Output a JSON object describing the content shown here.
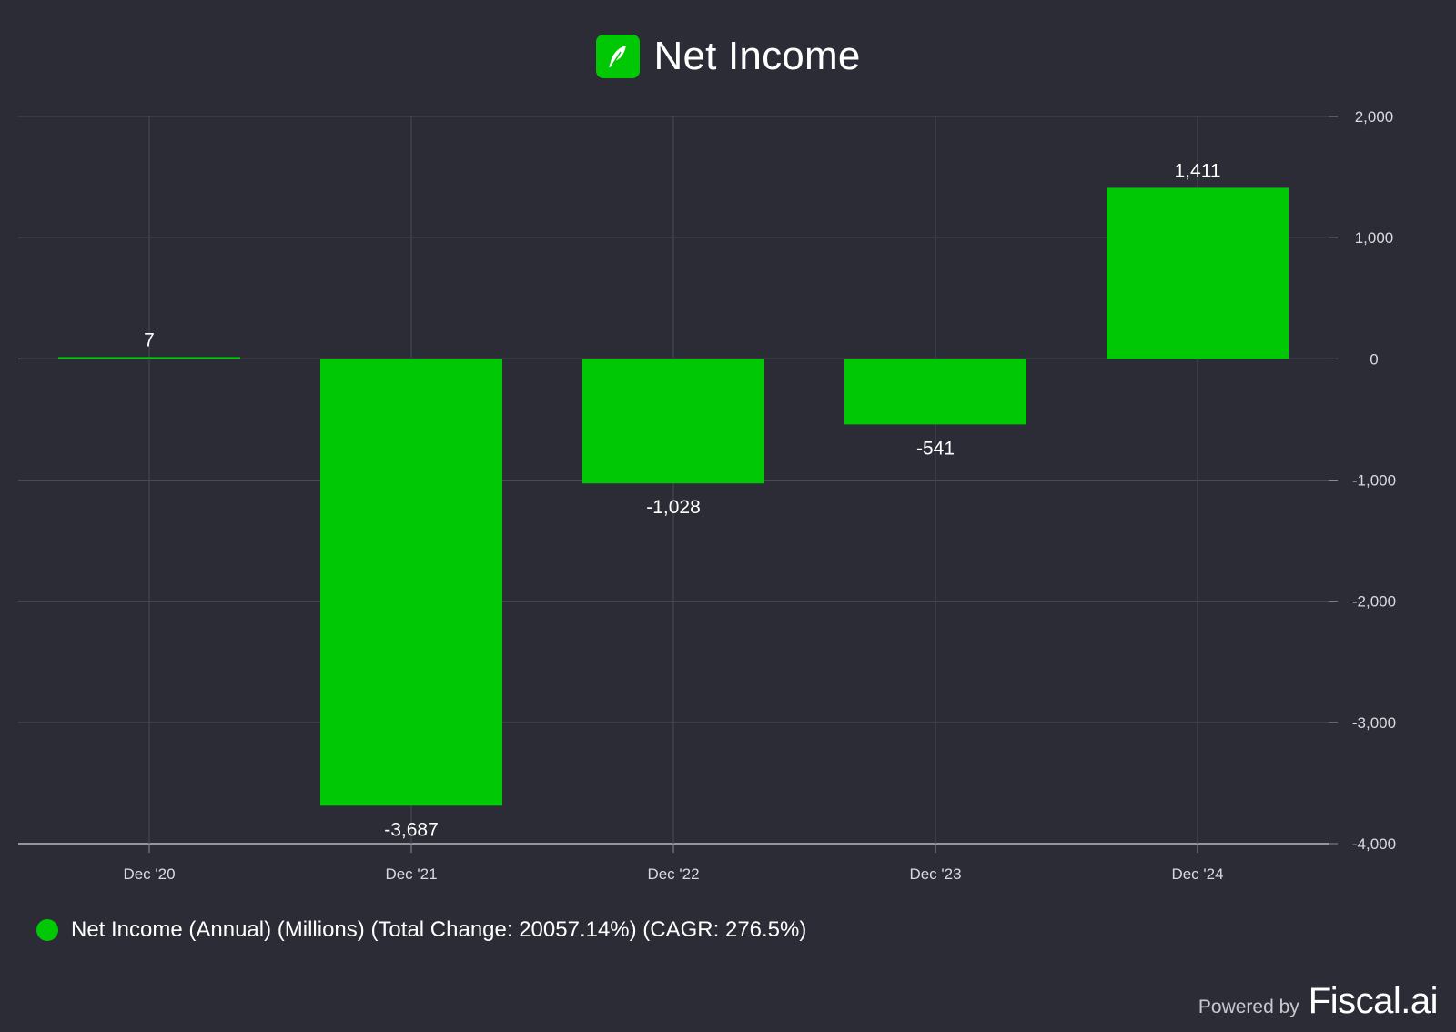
{
  "header": {
    "title": "Net Income",
    "logo_icon": "feather-icon"
  },
  "chart_data": {
    "type": "bar",
    "title": "Net Income",
    "categories": [
      "Dec '20",
      "Dec '21",
      "Dec '22",
      "Dec '23",
      "Dec '24"
    ],
    "series": [
      {
        "name": "Net Income (Annual) (Millions) (Total Change: 20057.14%) (CAGR: 276.5%)",
        "values": [
          7,
          -3687,
          -1028,
          -541,
          1411
        ],
        "labels": [
          "7",
          "-3,687",
          "-1,028",
          "-541",
          "1,411"
        ],
        "color": "#00c805"
      }
    ],
    "ylim": [
      -4000,
      2000
    ],
    "yticks": [
      2000,
      1000,
      0,
      -1000,
      -2000,
      -3000,
      -4000
    ],
    "ytick_labels": [
      "2,000",
      "1,000",
      "0",
      "-1,000",
      "-2,000",
      "-3,000",
      "-4,000"
    ],
    "y_axis_side": "right",
    "grid": true,
    "legend_position": "bottom-left"
  },
  "legend": {
    "label": "Net Income (Annual) (Millions) (Total Change: 20057.14%) (CAGR: 276.5%)"
  },
  "footer": {
    "powered_by": "Powered by",
    "brand": "Fiscal.ai"
  },
  "colors": {
    "background": "#2b2c35",
    "bar": "#00c805",
    "grid": "#4a4b55",
    "text": "#ffffff",
    "tick_text": "#d9dadf"
  }
}
